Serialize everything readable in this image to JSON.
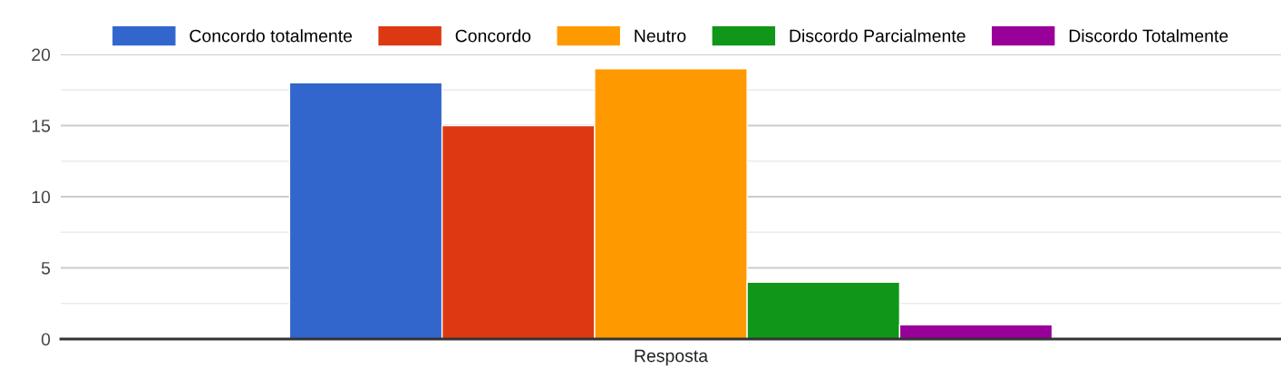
{
  "chart_data": {
    "type": "bar",
    "categories": [
      "Resposta"
    ],
    "series": [
      {
        "name": "Concordo totalmente",
        "color": "#3366cc",
        "values": [
          18
        ]
      },
      {
        "name": "Concordo",
        "color": "#dc3912",
        "values": [
          15
        ]
      },
      {
        "name": "Neutro",
        "color": "#ff9900",
        "values": [
          19
        ]
      },
      {
        "name": "Discordo Parcialmente",
        "color": "#109618",
        "values": [
          4
        ]
      },
      {
        "name": "Discordo Totalmente",
        "color": "#990099",
        "values": [
          1
        ]
      }
    ],
    "ylim": [
      0,
      20
    ],
    "yticks": [
      0,
      {
        "value": 2.5,
        "label": null
      },
      5,
      {
        "value": 7.5,
        "label": null
      },
      10,
      {
        "value": 12.5,
        "label": null
      },
      15,
      {
        "value": 17.5,
        "label": null
      },
      20
    ],
    "grid": "y",
    "legend": "top"
  }
}
